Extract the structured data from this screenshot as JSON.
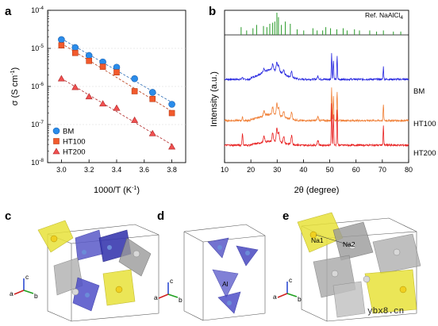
{
  "panels": {
    "a": "a",
    "b": "b",
    "c": "c",
    "d": "d",
    "e": "e"
  },
  "chart_data": [
    {
      "type": "scatter",
      "panel": "a",
      "xlabel": "1000/T (K",
      "xlabel_sup": "-1",
      "xlabel_tail": ")",
      "ylabel": "σ (S cm",
      "ylabel_sup": "-1",
      "ylabel_tail": ")",
      "y_scale": "log",
      "xlim": [
        2.9,
        3.9
      ],
      "ylim": [
        1e-08,
        0.0001
      ],
      "x_ticks": [
        "3.0",
        "3.2",
        "3.4",
        "3.6",
        "3.8"
      ],
      "x_tick_values": [
        3.0,
        3.2,
        3.4,
        3.6,
        3.8
      ],
      "y_ticks": [
        {
          "base": "10",
          "exp": "-4",
          "value": 0.0001
        },
        {
          "base": "10",
          "exp": "-5",
          "value": 1e-05
        },
        {
          "base": "10",
          "exp": "-6",
          "value": 1e-06
        },
        {
          "base": "10",
          "exp": "-7",
          "value": 1e-07
        },
        {
          "base": "10",
          "exp": "-8",
          "value": 1e-08
        }
      ],
      "legend_position": "bottom-left",
      "series": [
        {
          "name": "BM",
          "marker": "circle",
          "color": "#2a8cea",
          "edge": "#1a5fae",
          "x": [
            3.0,
            3.1,
            3.2,
            3.3,
            3.4,
            3.53,
            3.66,
            3.8
          ],
          "y": [
            1.7e-05,
            1.05e-05,
            6.5e-06,
            4.4e-06,
            3.2e-06,
            1.6e-06,
            7e-07,
            3.4e-07
          ]
        },
        {
          "name": "HT100",
          "marker": "square",
          "color": "#f25a2c",
          "edge": "#b83a14",
          "x": [
            3.0,
            3.1,
            3.2,
            3.3,
            3.4,
            3.53,
            3.66,
            3.8
          ],
          "y": [
            1.2e-05,
            7.6e-06,
            4.7e-06,
            3.3e-06,
            2.35e-06,
            7.5e-07,
            4.7e-07,
            2e-07
          ]
        },
        {
          "name": "HT200",
          "marker": "triangle",
          "color": "#f05050",
          "edge": "#b02424",
          "x": [
            3.0,
            3.1,
            3.2,
            3.3,
            3.4,
            3.53,
            3.66,
            3.8
          ],
          "y": [
            1.6e-06,
            9.5e-07,
            5.4e-07,
            3.5e-07,
            2.7e-07,
            1.3e-07,
            5.8e-08,
            2.6e-08
          ]
        }
      ]
    },
    {
      "type": "line",
      "panel": "b",
      "xlabel": "2θ (degree)",
      "ylabel": "Intensity (a.u.)",
      "xlim": [
        10,
        80
      ],
      "x_ticks": [
        "10",
        "20",
        "30",
        "40",
        "50",
        "60",
        "70",
        "80"
      ],
      "x_tick_values": [
        10,
        20,
        30,
        40,
        50,
        60,
        70,
        80
      ],
      "reference": {
        "name": "Ref. NaAlCl",
        "name_sub": "4",
        "color": "#2a9a2a",
        "positions": [
          16.3,
          18.4,
          20.8,
          22.2,
          24.8,
          26.1,
          27.2,
          28.3,
          29.1,
          29.9,
          30.5,
          31.6,
          33.1,
          35.0,
          37.6,
          40.1,
          43.6,
          45.2,
          47.3,
          48.5,
          50.3,
          52.7,
          55.1,
          56.6,
          59.4,
          61.3,
          65.2,
          67.8,
          70.4,
          74.2,
          77.0
        ],
        "heights": [
          0.35,
          0.2,
          0.3,
          0.45,
          0.4,
          0.35,
          0.5,
          0.55,
          0.6,
          1.0,
          0.8,
          0.45,
          0.6,
          0.5,
          0.25,
          0.2,
          0.3,
          0.2,
          0.2,
          0.35,
          0.3,
          0.25,
          0.3,
          0.2,
          0.25,
          0.2,
          0.2,
          0.15,
          0.2,
          0.15,
          0.15
        ]
      },
      "series": [
        {
          "name": "BM",
          "color": "#2828e0"
        },
        {
          "name": "HT100",
          "color": "#f08038"
        },
        {
          "name": "HT200",
          "color": "#e82020"
        }
      ]
    }
  ],
  "structures": {
    "c": {
      "axes_labels": [
        "c",
        "a",
        "b"
      ]
    },
    "d": {
      "atom_label": "Al",
      "axes_labels": [
        "c",
        "a",
        "b"
      ]
    },
    "e": {
      "site_labels": [
        "Na1",
        "Na2"
      ],
      "axes_labels": [
        "c",
        "a",
        "b"
      ]
    }
  },
  "watermark": "ybx8.cn"
}
